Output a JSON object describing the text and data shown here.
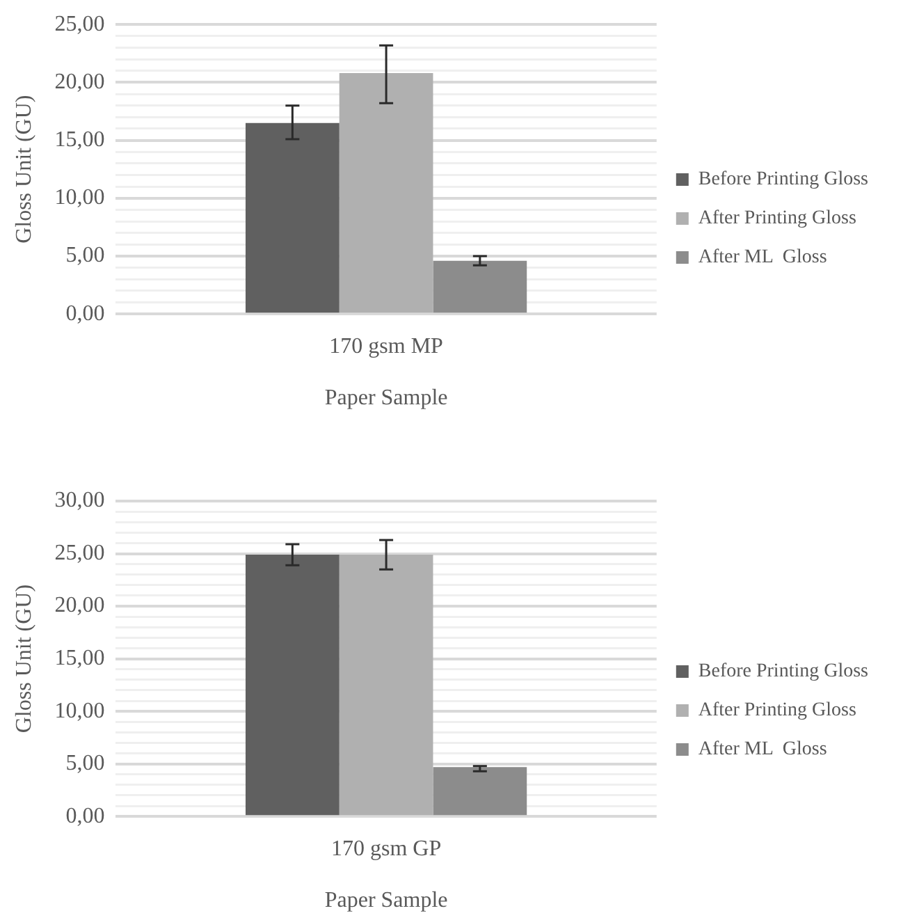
{
  "chart_data": [
    {
      "type": "bar",
      "categories": [
        "170 gsm MP"
      ],
      "xlabel": "Paper Sample",
      "ylabel": "Gloss Unit (GU)",
      "ylim": [
        0,
        25
      ],
      "yticks": [
        {
          "value": 0,
          "label": "0,00"
        },
        {
          "value": 1,
          "label": null
        },
        {
          "value": 2,
          "label": null
        },
        {
          "value": 3,
          "label": null
        },
        {
          "value": 4,
          "label": null
        },
        {
          "value": 5,
          "label": "5,00"
        },
        {
          "value": 6,
          "label": null
        },
        {
          "value": 7,
          "label": null
        },
        {
          "value": 8,
          "label": null
        },
        {
          "value": 9,
          "label": null
        },
        {
          "value": 10,
          "label": "10,00"
        },
        {
          "value": 11,
          "label": null
        },
        {
          "value": 12,
          "label": null
        },
        {
          "value": 13,
          "label": null
        },
        {
          "value": 14,
          "label": null
        },
        {
          "value": 15,
          "label": "15,00"
        },
        {
          "value": 16,
          "label": null
        },
        {
          "value": 17,
          "label": null
        },
        {
          "value": 18,
          "label": null
        },
        {
          "value": 19,
          "label": null
        },
        {
          "value": 20,
          "label": "20,00"
        },
        {
          "value": 21,
          "label": null
        },
        {
          "value": 22,
          "label": null
        },
        {
          "value": 23,
          "label": null
        },
        {
          "value": 24,
          "label": null
        },
        {
          "value": 25,
          "label": "25,00"
        }
      ],
      "grid": "y",
      "legend": "right",
      "series": [
        {
          "name": "Before Printing Gloss",
          "color": "#606060",
          "values": [
            16.5
          ],
          "errors": [
            [
              15.1,
              18.0
            ]
          ]
        },
        {
          "name": "After Printing Gloss",
          "color": "#b0b0b0",
          "values": [
            20.8
          ],
          "errors": [
            [
              18.2,
              23.2
            ]
          ]
        },
        {
          "name": "After ML  Gloss",
          "color": "#8c8c8c",
          "values": [
            4.6
          ],
          "errors": [
            [
              4.2,
              5.0
            ]
          ]
        }
      ]
    },
    {
      "type": "bar",
      "categories": [
        "170 gsm GP"
      ],
      "xlabel": "Paper Sample",
      "ylabel": "Gloss Unit (GU)",
      "ylim": [
        0,
        30
      ],
      "yticks": [
        {
          "value": 0,
          "label": "0,00"
        },
        {
          "value": 1,
          "label": null
        },
        {
          "value": 2,
          "label": null
        },
        {
          "value": 3,
          "label": null
        },
        {
          "value": 4,
          "label": null
        },
        {
          "value": 5,
          "label": "5,00"
        },
        {
          "value": 6,
          "label": null
        },
        {
          "value": 7,
          "label": null
        },
        {
          "value": 8,
          "label": null
        },
        {
          "value": 9,
          "label": null
        },
        {
          "value": 10,
          "label": "10,00"
        },
        {
          "value": 11,
          "label": null
        },
        {
          "value": 12,
          "label": null
        },
        {
          "value": 13,
          "label": null
        },
        {
          "value": 14,
          "label": null
        },
        {
          "value": 15,
          "label": "15,00"
        },
        {
          "value": 16,
          "label": null
        },
        {
          "value": 17,
          "label": null
        },
        {
          "value": 18,
          "label": null
        },
        {
          "value": 19,
          "label": null
        },
        {
          "value": 20,
          "label": "20,00"
        },
        {
          "value": 21,
          "label": null
        },
        {
          "value": 22,
          "label": null
        },
        {
          "value": 23,
          "label": null
        },
        {
          "value": 24,
          "label": null
        },
        {
          "value": 25,
          "label": "25,00"
        },
        {
          "value": 26,
          "label": null
        },
        {
          "value": 27,
          "label": null
        },
        {
          "value": 28,
          "label": null
        },
        {
          "value": 29,
          "label": null
        },
        {
          "value": 30,
          "label": "30,00"
        }
      ],
      "grid": "y",
      "legend": "right",
      "series": [
        {
          "name": "Before Printing Gloss",
          "color": "#606060",
          "values": [
            24.9
          ],
          "errors": [
            [
              23.9,
              25.9
            ]
          ]
        },
        {
          "name": "After Printing Gloss",
          "color": "#b0b0b0",
          "values": [
            24.9
          ],
          "errors": [
            [
              23.5,
              26.3
            ]
          ]
        },
        {
          "name": "After ML  Gloss",
          "color": "#8c8c8c",
          "values": [
            4.7
          ],
          "errors": [
            [
              4.3,
              4.8
            ]
          ]
        }
      ]
    }
  ]
}
